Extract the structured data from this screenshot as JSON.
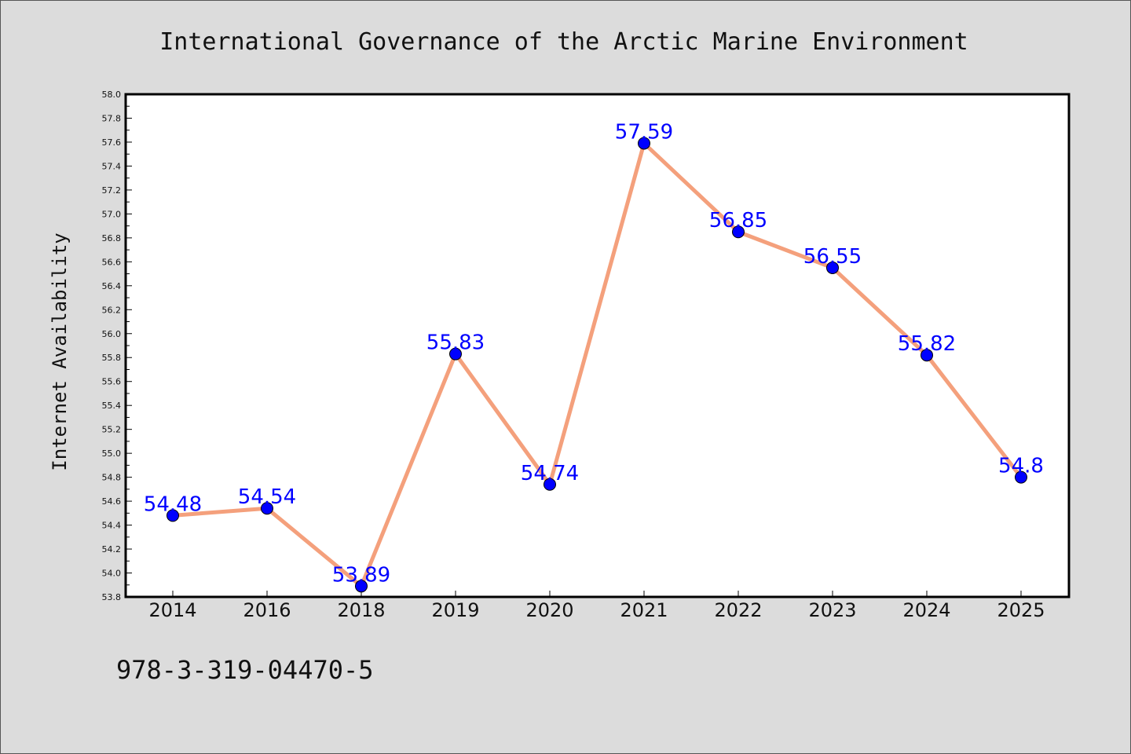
{
  "chart_data": {
    "type": "line",
    "title": "International Governance of the Arctic Marine Environment",
    "xlabel": "",
    "ylabel": "Internet Availability",
    "categories": [
      "2014",
      "2016",
      "2018",
      "2019",
      "2020",
      "2021",
      "2022",
      "2023",
      "2024",
      "2025"
    ],
    "series": [
      {
        "values": [
          54.48,
          54.54,
          53.89,
          55.83,
          54.74,
          57.59,
          56.85,
          56.55,
          55.82,
          54.8
        ],
        "data_labels": [
          "54.48",
          "54.54",
          "53.89",
          "55.83",
          "54.74",
          "57.59",
          "56.85",
          "56.55",
          "55.82",
          "54.8"
        ]
      }
    ],
    "ylim": [
      53.8,
      58.0
    ],
    "yticks": [
      "53.8",
      "54.0",
      "54.2",
      "54.4",
      "54.6",
      "54.8",
      "55.0",
      "55.2",
      "55.4",
      "55.6",
      "55.8",
      "56.0",
      "56.2",
      "56.4",
      "56.6",
      "56.8",
      "57.0",
      "57.2",
      "57.4",
      "57.6",
      "57.8",
      "58.0"
    ],
    "grid": false,
    "colors": {
      "line": "#f4a07c",
      "marker": "#0000ff",
      "label": "#0000ff",
      "background": "#dcdcdc",
      "plot_background": "#ffffff"
    }
  },
  "footnote": "978-3-319-04470-5"
}
